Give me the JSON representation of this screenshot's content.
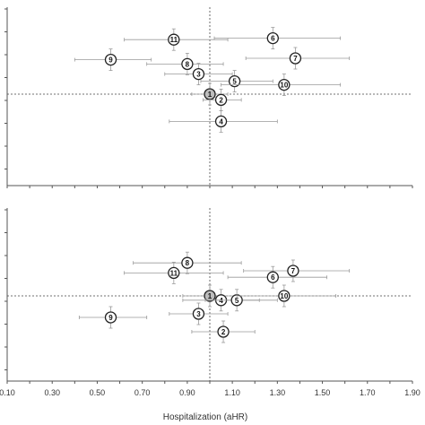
{
  "chart_data": [
    {
      "type": "scatter",
      "panel": "top",
      "xlabel": "",
      "ylabel": "",
      "xlim": [
        0.1,
        1.9
      ],
      "reference_x": 1.0,
      "points": [
        {
          "label": "1",
          "x": 1.0,
          "y": 0.0,
          "xerr": [
            0.92,
            1.08
          ],
          "highlight": true
        },
        {
          "label": "2",
          "x": 1.05,
          "y": -0.08,
          "xerr": [
            0.97,
            1.14
          ]
        },
        {
          "label": "3",
          "x": 0.95,
          "y": 0.28,
          "xerr": [
            0.8,
            1.1
          ]
        },
        {
          "label": "4",
          "x": 1.05,
          "y": -0.38,
          "xerr": [
            0.82,
            1.3
          ]
        },
        {
          "label": "5",
          "x": 1.11,
          "y": 0.18,
          "xerr": [
            0.96,
            1.28
          ]
        },
        {
          "label": "6",
          "x": 1.28,
          "y": 0.78,
          "xerr": [
            1.02,
            1.58
          ]
        },
        {
          "label": "7",
          "x": 1.38,
          "y": 0.5,
          "xerr": [
            1.16,
            1.62
          ]
        },
        {
          "label": "8",
          "x": 0.9,
          "y": 0.42,
          "xerr": [
            0.72,
            1.06
          ]
        },
        {
          "label": "9",
          "x": 0.56,
          "y": 0.48,
          "xerr": [
            0.4,
            0.74
          ]
        },
        {
          "label": "10",
          "x": 1.33,
          "y": 0.13,
          "xerr": [
            1.05,
            1.58
          ]
        },
        {
          "label": "11",
          "x": 0.84,
          "y": 0.76,
          "xerr": [
            0.62,
            1.08
          ]
        }
      ]
    },
    {
      "type": "scatter",
      "panel": "bottom",
      "xlabel": "Hospitalization (aHR)",
      "ylabel": "",
      "xlim": [
        0.1,
        1.9
      ],
      "xticks": [
        "0.10",
        "0.30",
        "0.50",
        "0.70",
        "0.90",
        "1.10",
        "1.30",
        "1.50",
        "1.70",
        "1.90"
      ],
      "reference_x": 1.0,
      "points": [
        {
          "label": "1",
          "x": 1.0,
          "y": 0.0,
          "xerr": [
            0.88,
            1.12
          ],
          "highlight": true
        },
        {
          "label": "2",
          "x": 1.06,
          "y": -0.5,
          "xerr": [
            0.92,
            1.2
          ]
        },
        {
          "label": "3",
          "x": 0.95,
          "y": -0.25,
          "xerr": [
            0.82,
            1.08
          ]
        },
        {
          "label": "4",
          "x": 1.05,
          "y": -0.06,
          "xerr": [
            0.88,
            1.22
          ]
        },
        {
          "label": "5",
          "x": 1.12,
          "y": -0.06,
          "xerr": [
            0.98,
            1.3
          ]
        },
        {
          "label": "6",
          "x": 1.28,
          "y": 0.26,
          "xerr": [
            1.08,
            1.52
          ]
        },
        {
          "label": "7",
          "x": 1.37,
          "y": 0.35,
          "xerr": [
            1.15,
            1.62
          ]
        },
        {
          "label": "8",
          "x": 0.9,
          "y": 0.46,
          "xerr": [
            0.66,
            1.14
          ]
        },
        {
          "label": "9",
          "x": 0.56,
          "y": -0.3,
          "xerr": [
            0.42,
            0.72
          ]
        },
        {
          "label": "10",
          "x": 1.33,
          "y": 0.0,
          "xerr": [
            1.12,
            1.56
          ]
        },
        {
          "label": "11",
          "x": 0.84,
          "y": 0.32,
          "xerr": [
            0.62,
            1.06
          ]
        }
      ]
    }
  ]
}
